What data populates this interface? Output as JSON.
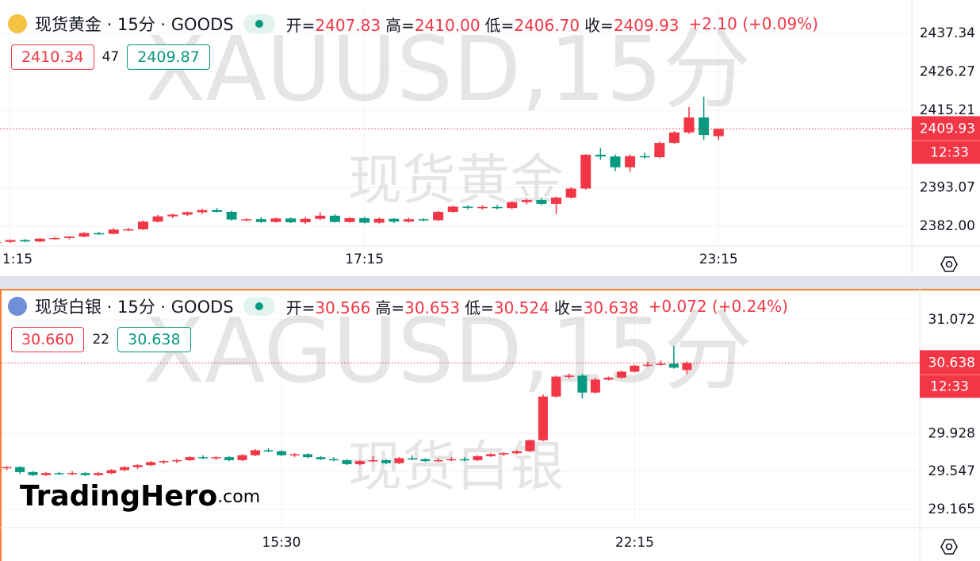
{
  "chart_data": [
    {
      "type": "candlestick",
      "title": "现货黄金 · 15分 · GOODS",
      "header": {
        "fields": [
          {
            "label": "开=",
            "value": "2407.83"
          },
          {
            "label": "高=",
            "value": "2410.00"
          },
          {
            "label": "低=",
            "value": "2406.70"
          },
          {
            "label": "收=",
            "value": "2409.93"
          }
        ],
        "change": "+2.10 (+0.09%)"
      },
      "quotes": {
        "sell": "2410.34",
        "spread": "47",
        "buy": "2409.87"
      },
      "watermark": {
        "symbol": "XAUUSD,15分",
        "name": "现货黄金"
      },
      "countdown": "12:33",
      "up_color": "#f23645",
      "down_color": "#089981",
      "grid": true,
      "xlim": [
        1.3,
        63.1
      ],
      "xticks": [
        {
          "value": 2,
          "label": "1:15"
        },
        {
          "value": 26,
          "label": "17:15"
        },
        {
          "value": 50,
          "label": "23:15"
        }
      ],
      "ylim": [
        2376.3,
        2445.8
      ],
      "yticks": [
        {
          "value": 2382,
          "label": "2382.00"
        },
        2393.07,
        2415.21,
        2426.27,
        2437.34
      ],
      "open": [
        2377.0,
        2377.3,
        2377.5,
        2378.0,
        2377.6,
        2378.4,
        2378.6,
        2379.0,
        2380.0,
        2379.8,
        2381.0,
        2381.1,
        2383.3,
        2384.8,
        2385.3,
        2386.0,
        2386.6,
        2386.1,
        2383.9,
        2384.0,
        2383.2,
        2384.2,
        2383.1,
        2384.1,
        2385.0,
        2383.2,
        2384.3,
        2383.0,
        2384.1,
        2383.3,
        2384.0,
        2383.7,
        2386.1,
        2387.6,
        2387.3,
        2387.5,
        2387.2,
        2388.9,
        2389.5,
        2388.4,
        2390.2,
        2392.8,
        2402.5,
        2402.0,
        2398.9,
        2402.1,
        2401.8,
        2405.9,
        2408.9,
        2413.2,
        2407.83
      ],
      "high": [
        2377.5,
        2377.8,
        2378.2,
        2378.3,
        2378.6,
        2378.9,
        2379.1,
        2380.3,
        2380.4,
        2381.4,
        2381.5,
        2383.6,
        2385.2,
        2385.6,
        2386.2,
        2387.0,
        2387.2,
        2386.4,
        2384.3,
        2384.6,
        2384.5,
        2384.5,
        2384.6,
        2386.0,
        2385.4,
        2384.6,
        2384.7,
        2384.5,
        2384.3,
        2384.4,
        2384.3,
        2386.4,
        2387.9,
        2388.0,
        2388.0,
        2388.1,
        2389.2,
        2389.9,
        2390.0,
        2390.5,
        2393.2,
        2402.7,
        2404.5,
        2402.6,
        2402.6,
        2403.1,
        2406.3,
        2409.3,
        2416.2,
        2419.2,
        2410.0
      ],
      "low": [
        2376.6,
        2377.0,
        2377.2,
        2377.4,
        2377.4,
        2378.1,
        2378.2,
        2378.8,
        2379.5,
        2379.6,
        2380.6,
        2380.9,
        2383.0,
        2384.3,
        2384.9,
        2385.4,
        2385.9,
        2383.6,
        2383.4,
        2382.9,
        2383.0,
        2382.9,
        2382.6,
        2383.8,
        2383.0,
        2383.0,
        2382.8,
        2382.7,
        2382.9,
        2383.0,
        2383.4,
        2383.5,
        2385.8,
        2386.8,
        2386.7,
        2386.8,
        2386.9,
        2388.3,
        2388.0,
        2385.5,
        2389.9,
        2392.5,
        2401.0,
        2397.8,
        2397.6,
        2401.4,
        2401.5,
        2405.6,
        2408.5,
        2406.8,
        2406.7
      ],
      "close": [
        2377.3,
        2377.5,
        2378.0,
        2377.6,
        2378.4,
        2378.6,
        2379.0,
        2380.0,
        2379.8,
        2381.0,
        2381.1,
        2383.3,
        2384.8,
        2385.3,
        2386.0,
        2386.6,
        2386.1,
        2383.9,
        2384.0,
        2383.2,
        2384.2,
        2383.1,
        2384.1,
        2385.0,
        2383.2,
        2384.3,
        2383.0,
        2384.1,
        2383.3,
        2384.0,
        2383.7,
        2386.1,
        2387.6,
        2387.3,
        2387.5,
        2387.2,
        2388.9,
        2389.5,
        2388.4,
        2390.2,
        2392.8,
        2402.5,
        2402.0,
        2398.9,
        2402.1,
        2401.8,
        2405.9,
        2408.9,
        2413.2,
        2408.2,
        2409.93
      ]
    },
    {
      "type": "candlestick",
      "title": "现货白银 · 15分 · GOODS",
      "header": {
        "fields": [
          {
            "label": "开=",
            "value": "30.566"
          },
          {
            "label": "高=",
            "value": "30.653"
          },
          {
            "label": "低=",
            "value": "30.524"
          },
          {
            "label": "收=",
            "value": "30.638"
          }
        ],
        "change": "+0.072 (+0.24%)"
      },
      "quotes": {
        "sell": "30.660",
        "spread": "22",
        "buy": "30.638"
      },
      "watermark": {
        "symbol": "XAGUSD,15分",
        "name": "现货白银"
      },
      "countdown": "12:33",
      "logo": {
        "brand": "TradingHero",
        "suffix": ".com"
      },
      "up_color": "#f23645",
      "down_color": "#089981",
      "grid": true,
      "xlim": [
        -0.4,
        69.8
      ],
      "xticks": [
        {
          "value": 21,
          "label": "15:30"
        },
        {
          "value": 48,
          "label": "22:15"
        }
      ],
      "ylim": [
        28.981,
        31.359
      ],
      "yticks": [
        29.165,
        29.547,
        29.928,
        31.072
      ],
      "open": [
        29.58,
        29.59,
        29.54,
        29.51,
        29.53,
        29.52,
        29.53,
        29.51,
        29.53,
        29.56,
        29.59,
        29.61,
        29.64,
        29.65,
        29.66,
        29.69,
        29.68,
        29.69,
        29.66,
        29.71,
        29.76,
        29.75,
        29.71,
        29.72,
        29.69,
        29.67,
        29.66,
        29.62,
        29.65,
        29.66,
        29.63,
        29.68,
        29.67,
        29.65,
        29.66,
        29.67,
        29.66,
        29.7,
        29.72,
        29.73,
        29.75,
        29.86,
        30.3,
        30.5,
        30.51,
        30.34,
        30.47,
        30.49,
        30.55,
        30.61,
        30.62,
        30.63,
        30.566
      ],
      "high": [
        29.6,
        29.6,
        29.55,
        29.54,
        29.54,
        29.55,
        29.54,
        29.54,
        29.57,
        29.6,
        29.62,
        29.65,
        29.66,
        29.67,
        29.7,
        29.71,
        29.7,
        29.7,
        29.72,
        29.77,
        29.78,
        29.76,
        29.73,
        29.73,
        29.7,
        29.69,
        29.67,
        29.66,
        29.7,
        29.67,
        29.69,
        29.71,
        29.68,
        29.68,
        29.69,
        29.69,
        29.71,
        29.73,
        29.74,
        29.76,
        29.87,
        30.32,
        30.51,
        30.53,
        30.53,
        30.49,
        30.5,
        30.56,
        30.62,
        30.65,
        30.66,
        30.81,
        30.653
      ],
      "low": [
        29.56,
        29.52,
        29.5,
        29.5,
        29.51,
        29.51,
        29.5,
        29.5,
        29.52,
        29.55,
        29.57,
        29.6,
        29.62,
        29.63,
        29.65,
        29.67,
        29.66,
        29.65,
        29.65,
        29.7,
        29.74,
        29.7,
        29.69,
        29.68,
        29.66,
        29.65,
        29.61,
        29.61,
        29.64,
        29.62,
        29.62,
        29.66,
        29.64,
        29.64,
        29.65,
        29.65,
        29.65,
        29.69,
        29.7,
        29.72,
        29.74,
        29.85,
        30.29,
        30.48,
        30.28,
        30.33,
        30.46,
        30.48,
        30.54,
        30.6,
        30.61,
        30.58,
        30.524
      ],
      "close": [
        29.59,
        29.54,
        29.51,
        29.53,
        29.52,
        29.53,
        29.51,
        29.53,
        29.56,
        29.59,
        29.61,
        29.64,
        29.65,
        29.66,
        29.69,
        29.68,
        29.69,
        29.66,
        29.71,
        29.76,
        29.75,
        29.71,
        29.72,
        29.69,
        29.67,
        29.66,
        29.62,
        29.65,
        29.66,
        29.63,
        29.68,
        29.67,
        29.65,
        29.66,
        29.67,
        29.66,
        29.7,
        29.72,
        29.73,
        29.75,
        29.86,
        30.3,
        30.5,
        30.51,
        30.34,
        30.47,
        30.49,
        30.55,
        30.61,
        30.62,
        30.63,
        30.59,
        30.638
      ]
    }
  ]
}
